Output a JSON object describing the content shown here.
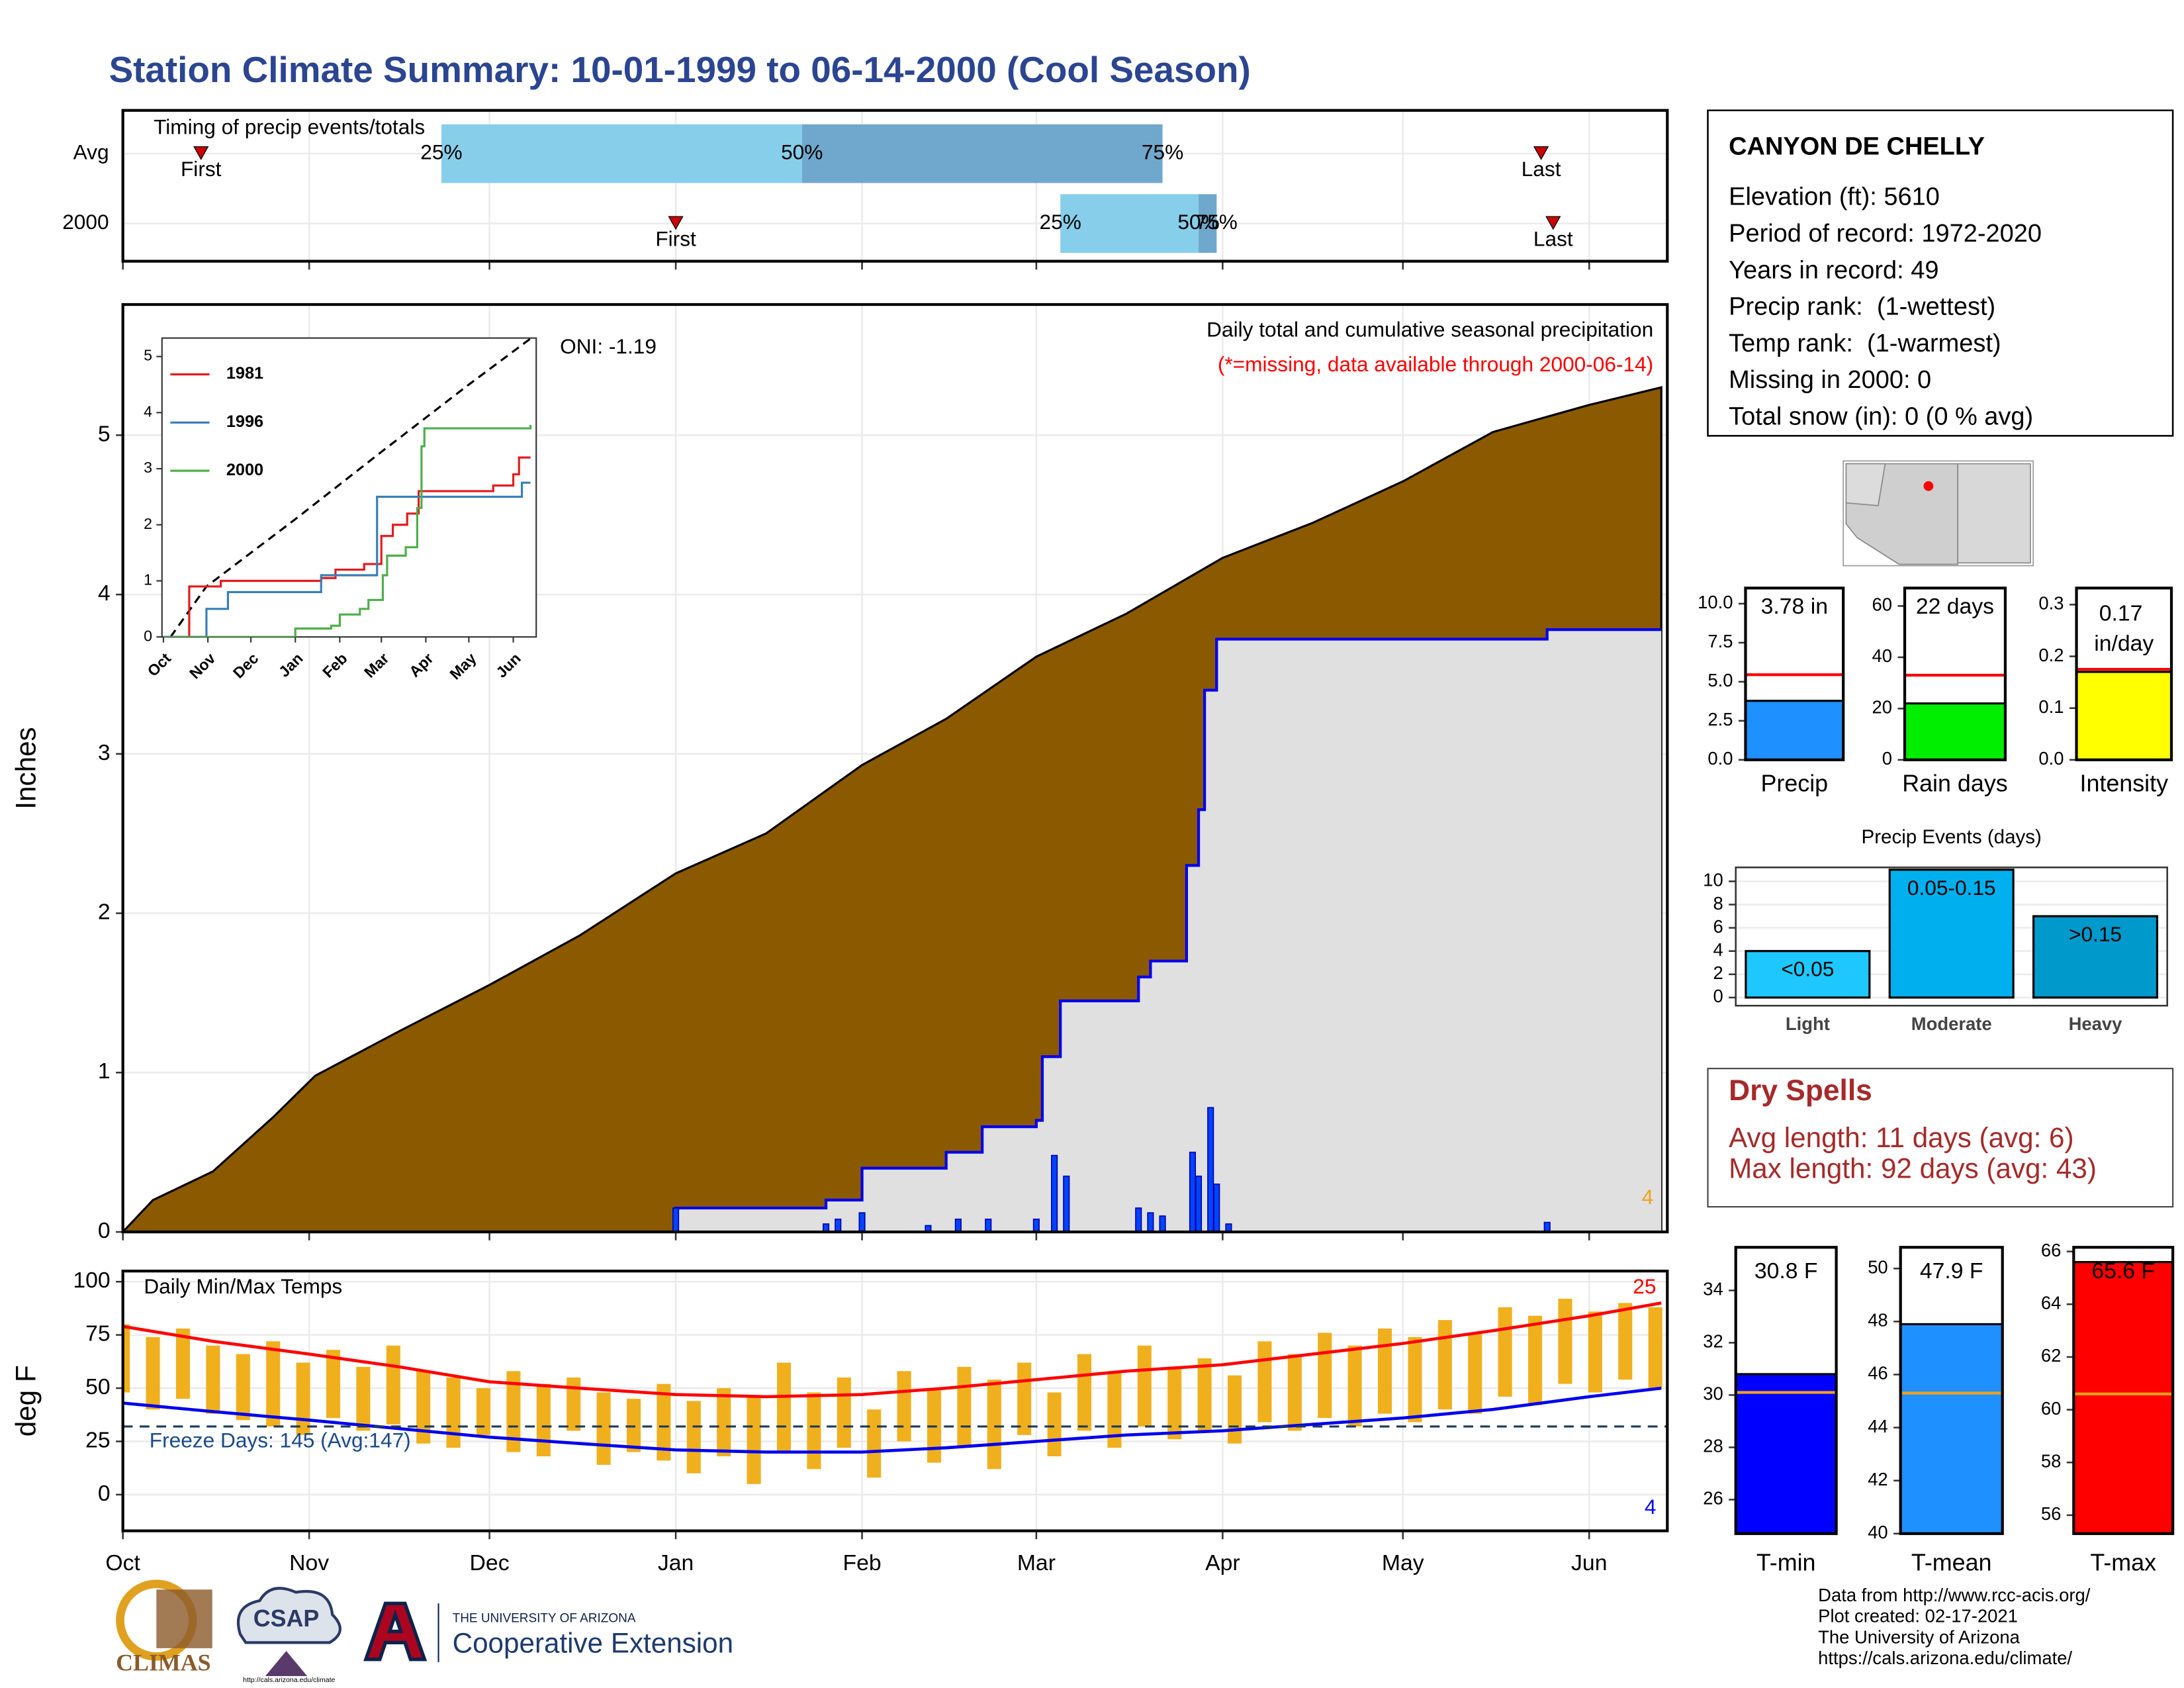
{
  "title": "Station Climate Summary: 10-01-1999 to 06-14-2000 (Cool Season)",
  "station": {
    "name": "CANYON DE CHELLY",
    "lines": [
      "Elevation (ft): 5610",
      "Period of record: 1972-2020",
      "Years in record: 49",
      "Precip rank:  (1-wettest)",
      "Temp rank:  (1-warmest)",
      "Missing in 2000: 0",
      "Total snow (in): 0 (0 % avg)"
    ]
  },
  "dry_spells": {
    "title": "Dry Spells",
    "lines": [
      "Avg length: 11 days (avg: 6)",
      "Max length: 92 days (avg: 43)"
    ]
  },
  "footer": {
    "credits": [
      "Data from http://www.rcc-acis.org/",
      "Plot created: 02-17-2021",
      "The University of Arizona",
      "https://cals.arizona.edu/climate/"
    ],
    "logos": [
      "CLIMAS",
      "CSAP",
      "http://cals.arizona.edu/climate",
      "THE UNIVERSITY OF ARIZONA",
      "Cooperative Extension"
    ]
  },
  "chart_data": [
    {
      "type": "timing",
      "title": "Timing of precip events/totals",
      "xlim": [
        0,
        257
      ],
      "xticks": [
        0,
        31,
        61,
        92,
        123,
        152,
        183,
        213,
        244
      ],
      "grid": true,
      "colors": [
        "#87ceeb",
        "#6fa8cc"
      ],
      "marker_color": "#cc0000",
      "rows": [
        {
          "name": "Avg",
          "markers": [
            {
              "label": "First",
              "x": 13
            },
            {
              "label": "Last",
              "x": 236
            }
          ],
          "quantiles": [
            {
              "label": "25%",
              "x": 53
            },
            {
              "label": "50%",
              "x": 113
            },
            {
              "label": "75%",
              "x": 173
            }
          ]
        },
        {
          "name": "2000",
          "markers": [
            {
              "label": "First",
              "x": 92
            },
            {
              "label": "Last",
              "x": 238
            }
          ],
          "quantiles": [
            {
              "label": "25%",
              "x": 156
            },
            {
              "label": "50%",
              "x": 179
            },
            {
              "label": "75%",
              "x": 182
            }
          ]
        }
      ]
    },
    {
      "type": "area",
      "subtitle": "Daily total and cumulative seasonal precipitation",
      "note": "(*=missing, data available through 2000-06-14)",
      "annotation": "ONI: -1.19",
      "corner_label": "4",
      "ylabel": "Inches",
      "grid": true,
      "xlim": [
        0,
        257
      ],
      "xticks": [
        0,
        31,
        61,
        92,
        123,
        152,
        183,
        213,
        244
      ],
      "ylim": [
        0,
        5.82
      ],
      "yticks": [
        0,
        1,
        2,
        3,
        4,
        5
      ],
      "average": {
        "color": "#8b5a00",
        "x": [
          0,
          5,
          15,
          25,
          32,
          46,
          61,
          76,
          92,
          107,
          123,
          137,
          152,
          167,
          183,
          198,
          213,
          228,
          244,
          256
        ],
        "values": [
          0,
          0.2,
          0.38,
          0.72,
          0.98,
          1.26,
          1.55,
          1.86,
          2.25,
          2.5,
          2.93,
          3.22,
          3.61,
          3.88,
          4.23,
          4.45,
          4.71,
          5.02,
          5.19,
          5.3
        ]
      },
      "cumulative": {
        "color": "#0000ee",
        "fill": "#e0e0e0",
        "x": [
          0,
          92,
          117,
          123,
          137,
          143,
          152,
          153,
          156,
          169,
          171,
          177,
          179,
          180,
          182,
          237,
          256
        ],
        "values": [
          0,
          0.15,
          0.2,
          0.4,
          0.5,
          0.66,
          0.7,
          1.1,
          1.45,
          1.6,
          1.7,
          2.3,
          2.65,
          3.4,
          3.72,
          3.78,
          3.78
        ]
      },
      "daily": {
        "color": "#0044ff",
        "x": [
          92,
          117,
          119,
          123,
          134,
          139,
          144,
          152,
          155,
          157,
          169,
          171,
          173,
          178,
          179,
          181,
          182,
          184,
          237
        ],
        "values": [
          0.15,
          0.05,
          0.08,
          0.12,
          0.04,
          0.08,
          0.08,
          0.08,
          0.48,
          0.35,
          0.15,
          0.12,
          0.1,
          0.5,
          0.35,
          0.78,
          0.3,
          0.05,
          0.06
        ]
      },
      "inset": {
        "xlim": [
          -1,
          260
        ],
        "ylim": [
          0,
          5.33
        ],
        "yticks": [
          0,
          1,
          2,
          3,
          4,
          5
        ],
        "xticks": [
          {
            "value": 0,
            "label": "Oct"
          },
          {
            "value": 31,
            "label": "Nov"
          },
          {
            "value": 61,
            "label": "Dec"
          },
          {
            "value": 92,
            "label": "Jan"
          },
          {
            "value": 123,
            "label": "Feb"
          },
          {
            "value": 152,
            "label": "Mar"
          },
          {
            "value": 183,
            "label": "Apr"
          },
          {
            "value": 213,
            "label": "May"
          },
          {
            "value": 244,
            "label": "Jun"
          }
        ],
        "reference": {
          "x": [
            5,
            30,
            92,
            152,
            213,
            256
          ],
          "values": [
            0,
            0.9,
            2.1,
            3.3,
            4.5,
            5.32
          ]
        },
        "series": [
          {
            "name": "1981",
            "color": "#e41a1c",
            "x": [
              0,
              14,
              18,
              40,
              92,
              110,
              120,
              140,
              150,
              152,
              160,
              170,
              178,
              183,
              213,
              230,
              244,
              248,
              256
            ],
            "values": [
              0,
              0,
              0.9,
              1.0,
              1.0,
              1.05,
              1.2,
              1.3,
              1.3,
              1.8,
              2.0,
              2.2,
              2.6,
              2.6,
              2.6,
              2.7,
              2.9,
              3.2,
              3.2
            ]
          },
          {
            "name": "1996",
            "color": "#377eb8",
            "x": [
              0,
              28,
              30,
              45,
              100,
              110,
              148,
              149,
              245,
              250,
              256
            ],
            "values": [
              0,
              0,
              0.5,
              0.8,
              0.8,
              1.1,
              1.1,
              2.5,
              2.5,
              2.75,
              2.75
            ]
          },
          {
            "name": "2000",
            "color": "#4daf4a",
            "x": [
              0,
              92,
              117,
              123,
              137,
              143,
              153,
              156,
              169,
              177,
              180,
              182,
              256
            ],
            "values": [
              0,
              0.15,
              0.2,
              0.4,
              0.5,
              0.66,
              1.1,
              1.45,
              1.6,
              2.3,
              3.4,
              3.72,
              3.78
            ]
          }
        ]
      }
    },
    {
      "type": "temp",
      "title": "Daily Min/Max Temps",
      "ylabel": "deg F",
      "grid": true,
      "xlim": [
        0,
        257
      ],
      "xticks": [
        {
          "value": 0,
          "label": "Oct"
        },
        {
          "value": 31,
          "label": "Nov"
        },
        {
          "value": 61,
          "label": "Dec"
        },
        {
          "value": 92,
          "label": "Jan"
        },
        {
          "value": 123,
          "label": "Feb"
        },
        {
          "value": 152,
          "label": "Mar"
        },
        {
          "value": 183,
          "label": "Apr"
        },
        {
          "value": 213,
          "label": "May"
        },
        {
          "value": 244,
          "label": "Jun"
        }
      ],
      "ylim": [
        -17,
        105
      ],
      "yticks": [
        0,
        25,
        50,
        75,
        100
      ],
      "freeze": {
        "value": 32,
        "label": "Freeze Days: 145 (Avg:147)",
        "color": "#1a3a5a"
      },
      "annotations": [
        {
          "text": "25",
          "color": "#ff0000"
        },
        {
          "text": "4",
          "color": "#0000ff"
        }
      ],
      "daily": {
        "color": "#f0b01e",
        "x": [
          0,
          5,
          10,
          15,
          20,
          25,
          30,
          35,
          40,
          45,
          50,
          55,
          60,
          65,
          70,
          75,
          80,
          85,
          90,
          95,
          100,
          105,
          110,
          115,
          120,
          125,
          130,
          135,
          140,
          145,
          150,
          155,
          160,
          165,
          170,
          175,
          180,
          185,
          190,
          195,
          200,
          205,
          210,
          215,
          220,
          225,
          230,
          235,
          240,
          245,
          250,
          255
        ],
        "lows": [
          48,
          40,
          45,
          38,
          35,
          32,
          28,
          36,
          30,
          33,
          24,
          22,
          28,
          20,
          18,
          30,
          14,
          20,
          16,
          10,
          18,
          5,
          20,
          12,
          22,
          8,
          25,
          15,
          22,
          12,
          28,
          18,
          30,
          22,
          32,
          26,
          30,
          24,
          34,
          30,
          36,
          32,
          38,
          34,
          40,
          38,
          46,
          42,
          52,
          48,
          54,
          50
        ],
        "highs": [
          80,
          74,
          78,
          70,
          66,
          72,
          62,
          68,
          60,
          70,
          58,
          55,
          50,
          58,
          52,
          55,
          48,
          45,
          52,
          44,
          50,
          46,
          62,
          48,
          55,
          40,
          58,
          50,
          60,
          54,
          62,
          48,
          66,
          58,
          70,
          60,
          64,
          56,
          72,
          66,
          76,
          70,
          78,
          74,
          82,
          76,
          88,
          84,
          92,
          86,
          90,
          88
        ]
      },
      "avg_max": {
        "color": "#ff0000",
        "x": [
          0,
          15,
          31,
          46,
          61,
          76,
          92,
          107,
          123,
          137,
          152,
          167,
          183,
          198,
          213,
          228,
          244,
          256
        ],
        "values": [
          79,
          72,
          66,
          60,
          53,
          50,
          47,
          46,
          47,
          50,
          54,
          58,
          61,
          66,
          71,
          77,
          84,
          90
        ]
      },
      "avg_min": {
        "color": "#0000ee",
        "x": [
          0,
          15,
          31,
          46,
          61,
          76,
          92,
          107,
          123,
          137,
          152,
          167,
          183,
          198,
          213,
          228,
          244,
          256
        ],
        "values": [
          43,
          39,
          35,
          31,
          27,
          24,
          21,
          20,
          20,
          22,
          25,
          28,
          30,
          33,
          36,
          40,
          46,
          50
        ]
      }
    },
    {
      "type": "bar",
      "categories": [
        "Precip"
      ],
      "values": [
        3.78
      ],
      "value_labels": [
        "3.78 in"
      ],
      "average": 5.45,
      "avg_color": "#ff0000",
      "color": "#1e90ff",
      "ylim": [
        0,
        11
      ],
      "yticks": [
        {
          "value": 0,
          "label": "0.0"
        },
        {
          "value": 2.5,
          "label": "2.5"
        },
        {
          "value": 5,
          "label": "5.0"
        },
        {
          "value": 7.5,
          "label": "7.5"
        },
        {
          "value": 10,
          "label": "10.0"
        }
      ]
    },
    {
      "type": "bar",
      "categories": [
        "Rain days"
      ],
      "values": [
        22
      ],
      "value_labels": [
        "22 days"
      ],
      "average": 33,
      "avg_color": "#ff0000",
      "color": "#00ee00",
      "ylim": [
        0,
        67
      ],
      "yticks": [
        0,
        20,
        40,
        60
      ]
    },
    {
      "type": "bar",
      "categories": [
        "Intensity"
      ],
      "values": [
        0.17
      ],
      "value_labels": [
        "0.17\nin/day"
      ],
      "average": 0.175,
      "avg_color": "#ff0000",
      "color": "#ffff00",
      "ylim": [
        0,
        0.332
      ],
      "yticks": [
        {
          "value": 0,
          "label": "0.0"
        },
        {
          "value": 0.1,
          "label": "0.1"
        },
        {
          "value": 0.2,
          "label": "0.2"
        },
        {
          "value": 0.3,
          "label": "0.3"
        }
      ]
    },
    {
      "type": "bar",
      "title": "Precip Events (days)",
      "categories": [
        "Light",
        "Moderate",
        "Heavy"
      ],
      "values": [
        4,
        11,
        7
      ],
      "bin_labels": [
        "<0.05",
        "0.05-0.15",
        ">0.15"
      ],
      "colors": [
        "#1ec8ff",
        "#00b0ee",
        "#0099cc"
      ],
      "ylim": [
        -0.7,
        11.2
      ],
      "yticks": [
        0,
        2,
        4,
        6,
        8,
        10
      ],
      "grid": true
    },
    {
      "type": "bar",
      "categories": [
        "T-min"
      ],
      "values": [
        30.8
      ],
      "value_labels": [
        "30.8 F"
      ],
      "average": 30.1,
      "avg_color": "#f0a020",
      "color": "#0000ff",
      "ylim": [
        24.7,
        35.65
      ],
      "yticks": [
        26,
        28,
        30,
        32,
        34
      ]
    },
    {
      "type": "bar",
      "categories": [
        "T-mean"
      ],
      "values": [
        47.9
      ],
      "value_labels": [
        "47.9 F"
      ],
      "average": 45.3,
      "avg_color": "#f0a020",
      "color": "#1e90ff",
      "ylim": [
        40,
        50.8
      ],
      "yticks": [
        40,
        42,
        44,
        46,
        48,
        50
      ]
    },
    {
      "type": "bar",
      "categories": [
        "T-max"
      ],
      "values": [
        65.6
      ],
      "value_labels": [
        "65.6 F"
      ],
      "average": 60.6,
      "avg_color": "#f0a020",
      "color": "#ff0000",
      "ylim": [
        55.3,
        66.16
      ],
      "yticks": [
        56,
        58,
        60,
        62,
        64,
        66
      ]
    }
  ]
}
